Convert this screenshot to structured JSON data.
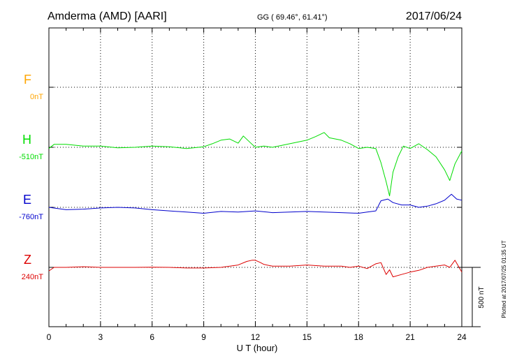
{
  "header": {
    "station": "Amderma (AMD)  [AARI]",
    "coords": "GG ( 69.46°,  61.41°)",
    "date": "2017/06/24"
  },
  "side_note": "Plotted at 2017/07/25 01:35 UT",
  "scale_bar_label": "500 nT",
  "chart_data": {
    "type": "line",
    "title": "",
    "xlabel": "U T (hour)",
    "xlim": [
      0,
      24
    ],
    "x_ticks": [
      0,
      3,
      6,
      9,
      12,
      15,
      18,
      21,
      24
    ],
    "x_tick_labels": [
      "0",
      "3",
      "6",
      "9",
      "12",
      "15",
      "18",
      "21",
      "24"
    ],
    "grid": true,
    "y_unit": "nT",
    "scale_bar_nT": 500,
    "series": [
      {
        "name": "F",
        "baseline_label": "0nT",
        "color": "#FFA500",
        "x": [],
        "values": []
      },
      {
        "name": "H",
        "baseline_label": "-510nT",
        "color": "#00DD00",
        "x": [
          0,
          0.3,
          1,
          2,
          3,
          4,
          5,
          6,
          7,
          8,
          9,
          9.5,
          10,
          10.5,
          11,
          11.3,
          11.7,
          12,
          12.5,
          13,
          14,
          15,
          15.5,
          16,
          16.3,
          17,
          17.5,
          18,
          18.5,
          19,
          19.3,
          19.6,
          19.8,
          20,
          20.3,
          20.6,
          21,
          21.5,
          22,
          22.5,
          23,
          23.3,
          23.6,
          24
        ],
        "values": [
          -520,
          -485,
          -485,
          -500,
          -500,
          -515,
          -510,
          -500,
          -505,
          -520,
          -505,
          -480,
          -450,
          -440,
          -475,
          -415,
          -470,
          -510,
          -500,
          -510,
          -480,
          -450,
          -420,
          -385,
          -430,
          -450,
          -480,
          -520,
          -510,
          -520,
          -640,
          -800,
          -920,
          -720,
          -590,
          -500,
          -520,
          -480,
          -530,
          -590,
          -700,
          -790,
          -650,
          -540
        ]
      },
      {
        "name": "E",
        "baseline_label": "-760nT",
        "color": "#0000CC",
        "x": [
          0,
          1,
          2,
          3,
          4,
          5,
          6,
          7,
          8,
          9,
          10,
          11,
          12,
          13,
          14,
          15,
          16,
          17,
          18,
          18.5,
          19,
          19.3,
          19.7,
          20,
          20.5,
          21,
          21.5,
          22,
          22.5,
          23,
          23.4,
          23.7,
          24
        ],
        "values": [
          -760,
          -780,
          -775,
          -765,
          -760,
          -765,
          -780,
          -790,
          -800,
          -810,
          -795,
          -800,
          -790,
          -805,
          -800,
          -795,
          -800,
          -805,
          -810,
          -800,
          -790,
          -705,
          -690,
          -720,
          -740,
          -740,
          -760,
          -750,
          -730,
          -700,
          -650,
          -690,
          -700
        ]
      },
      {
        "name": "Z",
        "baseline_label": "240nT",
        "color": "#DD0000",
        "x": [
          0,
          0.3,
          1,
          2,
          3,
          4,
          5,
          6,
          7,
          8,
          9,
          10,
          11,
          11.5,
          11.8,
          12,
          12.3,
          12.5,
          13,
          14,
          15,
          16,
          17,
          17.5,
          18,
          18.5,
          19,
          19.3,
          19.6,
          19.8,
          20,
          20.5,
          21,
          21.5,
          22,
          22.5,
          23,
          23.3,
          23.6,
          23.8,
          24
        ],
        "values": [
          210,
          240,
          240,
          245,
          240,
          240,
          240,
          242,
          240,
          235,
          235,
          240,
          260,
          290,
          300,
          300,
          280,
          265,
          250,
          250,
          260,
          250,
          250,
          240,
          250,
          230,
          270,
          280,
          180,
          220,
          160,
          180,
          200,
          215,
          240,
          250,
          260,
          240,
          300,
          250,
          200
        ]
      }
    ]
  }
}
